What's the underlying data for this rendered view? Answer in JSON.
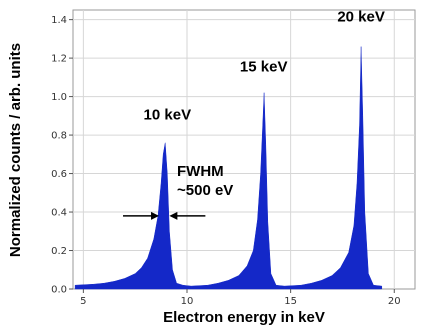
{
  "chart_data": {
    "type": "area",
    "xlabel": "Electron energy in keV",
    "ylabel": "Normalized counts / arb. units",
    "xlim": [
      4.5,
      21
    ],
    "ylim": [
      0,
      1.45
    ],
    "xticks": [
      5,
      10,
      15,
      20
    ],
    "yticks": [
      0.0,
      0.2,
      0.4,
      0.6,
      0.8,
      1.0,
      1.2,
      1.4
    ],
    "ytick_labels": [
      "0.0",
      "0.2",
      "0.4",
      "0.6",
      "0.8",
      "1.0",
      "1.2",
      "1.4"
    ],
    "grid": true,
    "fill_color": "#1428c8",
    "series": [
      {
        "label": "10 keV",
        "x": [
          4.6,
          5.5,
          6.0,
          6.5,
          7.0,
          7.5,
          7.8,
          8.1,
          8.4,
          8.6,
          8.75,
          8.85,
          8.95,
          9.05,
          9.15,
          9.3,
          9.5,
          9.8,
          10.2
        ],
        "y": [
          0.02,
          0.025,
          0.03,
          0.04,
          0.055,
          0.08,
          0.11,
          0.16,
          0.26,
          0.38,
          0.55,
          0.7,
          0.76,
          0.6,
          0.3,
          0.1,
          0.03,
          0.02,
          0.015
        ]
      },
      {
        "label": "15 keV",
        "x": [
          10.2,
          11.0,
          11.5,
          12.0,
          12.5,
          12.9,
          13.2,
          13.4,
          13.55,
          13.65,
          13.72,
          13.8,
          13.9,
          14.05,
          14.3,
          14.7
        ],
        "y": [
          0.015,
          0.02,
          0.03,
          0.045,
          0.07,
          0.12,
          0.2,
          0.36,
          0.6,
          0.85,
          1.02,
          0.75,
          0.35,
          0.08,
          0.02,
          0.015
        ]
      },
      {
        "label": "20 keV",
        "x": [
          14.7,
          15.5,
          16.0,
          16.5,
          17.0,
          17.4,
          17.8,
          18.05,
          18.2,
          18.32,
          18.4,
          18.48,
          18.58,
          18.75,
          19.0,
          19.4
        ],
        "y": [
          0.015,
          0.02,
          0.03,
          0.045,
          0.07,
          0.11,
          0.19,
          0.33,
          0.55,
          0.85,
          1.26,
          0.9,
          0.4,
          0.08,
          0.02,
          0.015
        ]
      }
    ],
    "annotations": {
      "peak_labels": [
        {
          "text": "10 keV",
          "x": 9.05,
          "y": 0.88
        },
        {
          "text": "15 keV",
          "x": 13.7,
          "y": 1.13
        },
        {
          "text": "20 keV",
          "x": 18.4,
          "y": 1.39
        }
      ],
      "fwhm_line1": "FWHM",
      "fwhm_line2": "~500 eV",
      "fwhm_left_x": 8.65,
      "fwhm_right_x": 9.15,
      "fwhm_y": 0.38
    }
  }
}
